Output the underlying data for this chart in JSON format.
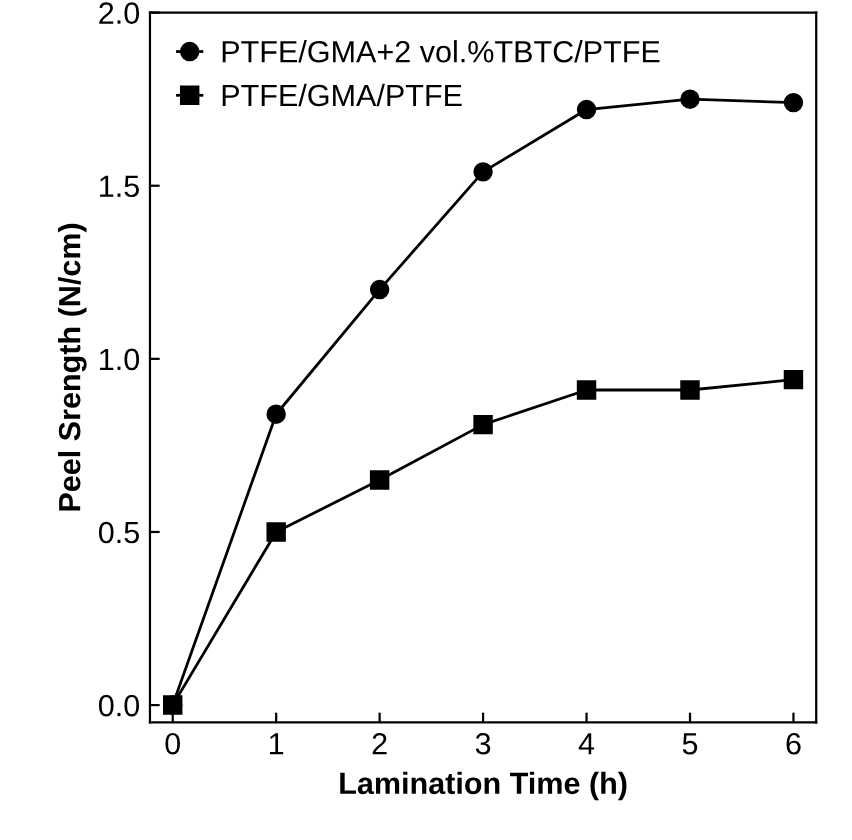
{
  "chart_data": {
    "type": "line",
    "xlabel": "Lamination Time (h)",
    "ylabel": "Peel Srength (N/cm)",
    "x": [
      0,
      1,
      2,
      3,
      4,
      5,
      6
    ],
    "series": [
      {
        "name": "PTFE/GMA+2 vol.%TBTC/PTFE",
        "color": "#000000",
        "marker": "circle",
        "values": [
          0,
          0.84,
          1.2,
          1.54,
          1.72,
          1.75,
          1.74
        ]
      },
      {
        "name": "PTFE/GMA/PTFE",
        "color": "#000000",
        "marker": "square",
        "values": [
          0,
          0.5,
          0.65,
          0.81,
          0.91,
          0.91,
          0.94
        ]
      }
    ],
    "xlim": [
      -0.22,
      6.22
    ],
    "xticks": [
      0,
      1,
      2,
      3,
      4,
      5,
      6
    ],
    "ylim": [
      -0.05,
      2.0
    ],
    "yticks": [
      {
        "value": 0,
        "label": "0.0"
      },
      {
        "value": 0.5,
        "label": "0.5"
      },
      {
        "value": 1,
        "label": "1.0"
      },
      {
        "value": 1.5,
        "label": "1.5"
      },
      {
        "value": 2,
        "label": "2.0"
      }
    ],
    "grid": false,
    "legend": "top left",
    "line_style": "solid"
  }
}
